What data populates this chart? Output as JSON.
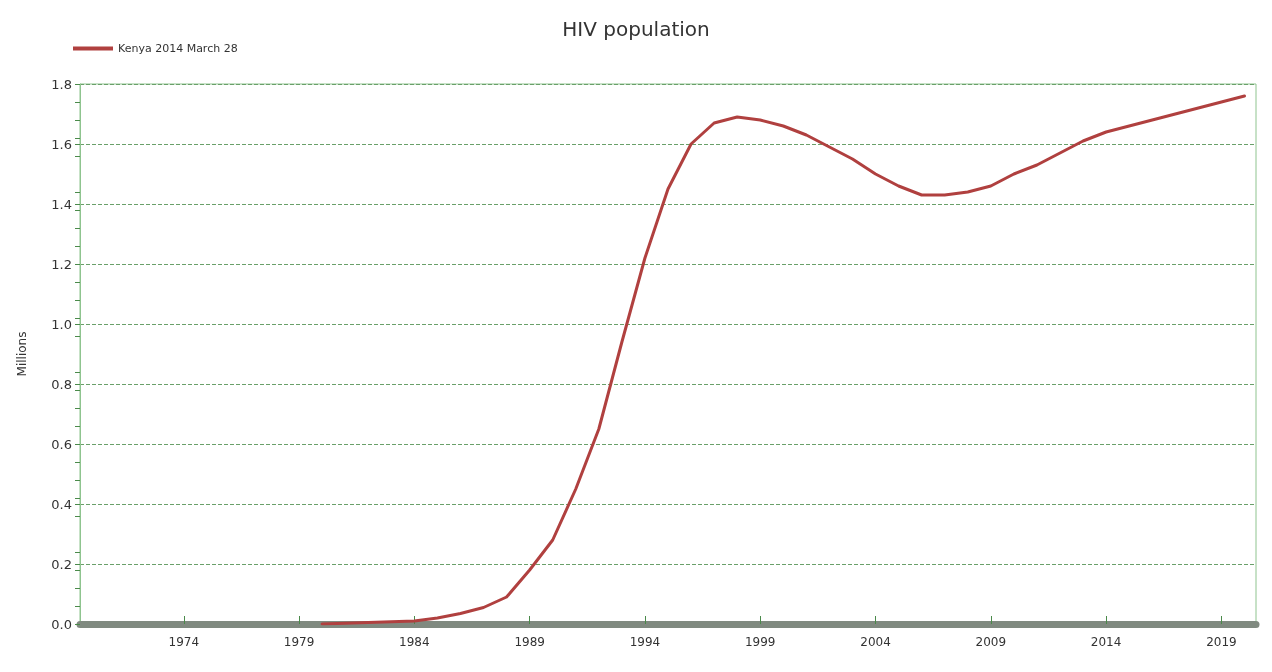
{
  "chart_data": {
    "type": "line",
    "title": "HIV population",
    "ylabel": "Millions",
    "x": [
      1980,
      1984,
      1985,
      1986,
      1987,
      1988,
      1989,
      1990,
      1991,
      1992,
      1993,
      1994,
      1995,
      1996,
      1997,
      1998,
      1999,
      2000,
      2001,
      2002,
      2003,
      2004,
      2005,
      2006,
      2007,
      2008,
      2009,
      2010,
      2011,
      2012,
      2013,
      2014,
      2015,
      2016,
      2017,
      2018,
      2019,
      2020
    ],
    "series": [
      {
        "name": "Kenya 2014 March 28",
        "color": "#b0403f",
        "values": [
          0.0,
          0.01,
          0.02,
          0.035,
          0.055,
          0.09,
          0.18,
          0.28,
          0.45,
          0.65,
          0.94,
          1.22,
          1.45,
          1.6,
          1.67,
          1.69,
          1.68,
          1.66,
          1.63,
          1.59,
          1.55,
          1.5,
          1.46,
          1.43,
          1.43,
          1.44,
          1.46,
          1.5,
          1.53,
          1.57,
          1.61,
          1.64,
          1.66,
          1.68,
          1.7,
          1.72,
          1.74,
          1.76
        ]
      }
    ],
    "xlim": [
      1969.5,
      2020.5
    ],
    "xticks": [
      1974,
      1979,
      1984,
      1989,
      1994,
      1999,
      2004,
      2009,
      2014,
      2019
    ],
    "ylim": [
      0,
      1.8
    ],
    "yticks": [
      {
        "value": 0,
        "label": "0.0"
      },
      {
        "value": 0.2,
        "label": "0.2"
      },
      {
        "value": 0.4,
        "label": "0.4"
      },
      {
        "value": 0.6,
        "label": "0.6"
      },
      {
        "value": 0.8,
        "label": "0.8"
      },
      {
        "value": 1.0,
        "label": "1.0"
      },
      {
        "value": 1.2,
        "label": "1.2"
      },
      {
        "value": 1.4,
        "label": "1.4"
      },
      {
        "value": 1.6,
        "label": "1.6"
      },
      {
        "value": 1.8,
        "label": "1.8"
      }
    ],
    "grid": "y",
    "legend": "top left",
    "marker": "none",
    "line_style": "solid"
  }
}
